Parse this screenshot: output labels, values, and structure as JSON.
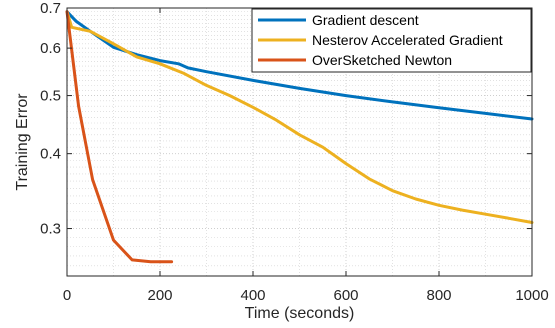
{
  "chart_data": {
    "type": "line",
    "xlabel": "Time (seconds)",
    "ylabel": "Training Error",
    "xlim": [
      0,
      1000
    ],
    "ylim": [
      0.25,
      0.7
    ],
    "y_scale": "log",
    "x_ticks": [
      0,
      200,
      400,
      600,
      800,
      1000
    ],
    "y_ticks": [
      0.3,
      0.4,
      0.5,
      0.6,
      0.7
    ],
    "y_tick_labels": [
      "0.3",
      "0.4",
      "0.5",
      "0.6",
      "0.7"
    ],
    "grid": true,
    "legend_position": "top-right",
    "series": [
      {
        "name": "Gradient descent",
        "color": "#0072BD",
        "x": [
          0,
          20,
          50,
          100,
          150,
          200,
          240,
          260,
          300,
          400,
          500,
          600,
          700,
          800,
          900,
          1000
        ],
        "y": [
          0.69,
          0.665,
          0.64,
          0.602,
          0.585,
          0.572,
          0.565,
          0.556,
          0.548,
          0.53,
          0.514,
          0.5,
          0.488,
          0.477,
          0.467,
          0.457
        ]
      },
      {
        "name": "Nesterov Accelerated Gradient",
        "color": "#EDB120",
        "x": [
          0,
          10,
          50,
          100,
          150,
          200,
          250,
          300,
          350,
          400,
          450,
          500,
          550,
          600,
          650,
          700,
          750,
          800,
          850,
          900,
          950,
          1000
        ],
        "y": [
          0.69,
          0.65,
          0.64,
          0.61,
          0.58,
          0.565,
          0.545,
          0.52,
          0.5,
          0.478,
          0.455,
          0.43,
          0.41,
          0.385,
          0.363,
          0.347,
          0.336,
          0.328,
          0.322,
          0.317,
          0.312,
          0.307
        ]
      },
      {
        "name": "OverSketched Newton",
        "color": "#D95319",
        "x": [
          0,
          25,
          55,
          100,
          140,
          180,
          225
        ],
        "y": [
          0.69,
          0.48,
          0.362,
          0.287,
          0.266,
          0.264,
          0.264
        ]
      }
    ]
  }
}
